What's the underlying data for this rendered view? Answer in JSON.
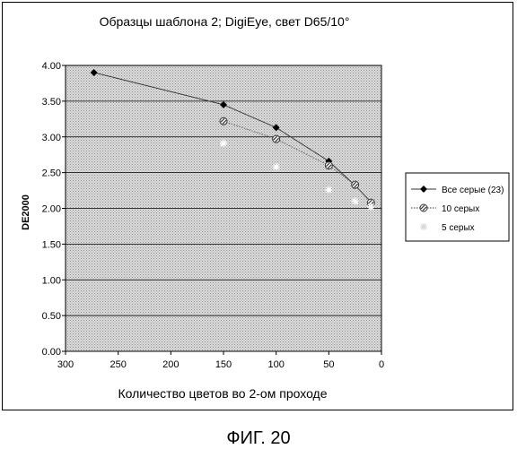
{
  "chart_data": {
    "type": "line",
    "title": "Образцы шаблона 2; DigiEye, свет D65/10°",
    "xlabel": "Количество цветов во 2-ом проходе",
    "ylabel": "DE2000",
    "xlim": [
      300,
      0
    ],
    "ylim": [
      0,
      4
    ],
    "x_reversed": true,
    "x_ticks": [
      "300",
      "250",
      "200",
      "150",
      "100",
      "50",
      "0"
    ],
    "y_ticks": [
      "0.00",
      "0.50",
      "1.00",
      "1.50",
      "2.00",
      "2.50",
      "3.00",
      "3.50",
      "4.00"
    ],
    "grid": true,
    "legend_position": "right",
    "series": [
      {
        "name": "Все серые (23)",
        "marker": "diamond",
        "color": "#000000",
        "line": "solid",
        "x": [
          273,
          150,
          100,
          50,
          25,
          10
        ],
        "y": [
          3.9,
          3.45,
          3.13,
          2.66,
          2.32,
          2.09
        ]
      },
      {
        "name": "10 серых",
        "marker": "hatched-circle",
        "color": "#555555",
        "line": "dotted",
        "x": [
          150,
          100,
          50,
          25,
          10
        ],
        "y": [
          3.22,
          2.97,
          2.6,
          2.33,
          2.08
        ]
      },
      {
        "name": "5 серых",
        "marker": "star",
        "color": "#ffffff",
        "line": "none",
        "x": [
          150,
          100,
          50,
          25,
          10
        ],
        "y": [
          2.91,
          2.58,
          2.26,
          2.1,
          2.02
        ]
      }
    ]
  },
  "figure_caption": "ФИГ. 20"
}
